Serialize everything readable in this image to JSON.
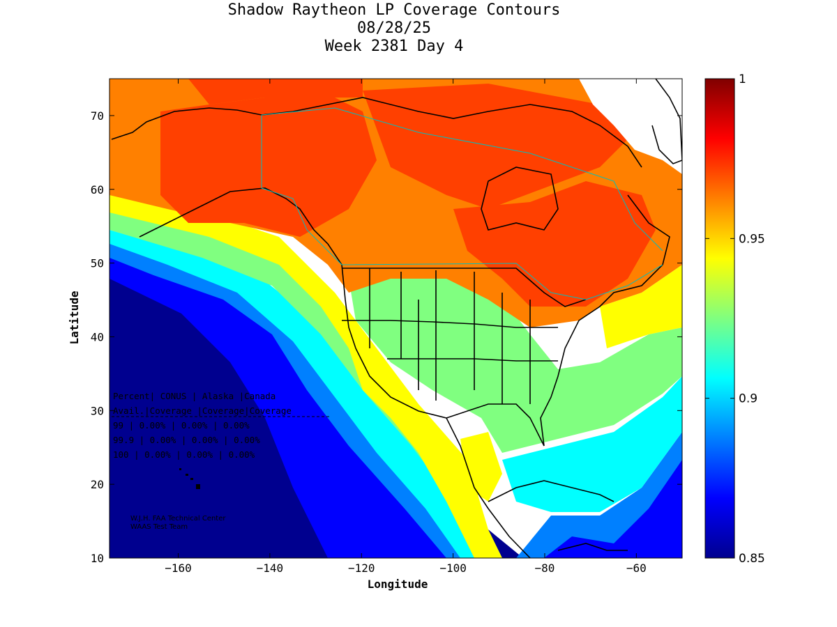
{
  "title": {
    "line1": "Shadow Raytheon LP Coverage Contours",
    "line2": "08/28/25",
    "line3": "Week 2381 Day 4"
  },
  "map": {
    "xlabel": "Longitude",
    "ylabel": "Latitude",
    "xlim": [
      -175,
      -50
    ],
    "ylim": [
      10,
      75
    ],
    "x_ticks": [
      -160,
      -140,
      -120,
      -100,
      -80,
      -60
    ],
    "y_ticks": [
      10,
      20,
      30,
      40,
      50,
      60,
      70
    ],
    "colormap": "jet"
  },
  "colorbar": {
    "range": [
      0.85,
      1
    ],
    "ticks": [
      "1",
      "0.95",
      "0.9",
      "0.85"
    ],
    "colors": [
      "#00008f",
      "#0000ff",
      "#0080ff",
      "#00ffff",
      "#80ff80",
      "#ffff00",
      "#ff8000",
      "#ff0000",
      "#800000"
    ]
  },
  "coverage_table": {
    "header1": "Percent| CONUS   | Alaska |Canada",
    "header2": " Avail.|Coverage |Coverage|Coverage",
    "rows": [
      "  99   | 0.00% | 0.00% | 0.00%",
      "  99.9 | 0.00% | 0.00% | 0.00%",
      "  100  | 0.00% | 0.00% | 0.00%"
    ]
  },
  "credit": {
    "line1": "W.J.H. FAA Technical Center",
    "line2": "WAAS Test Team"
  }
}
